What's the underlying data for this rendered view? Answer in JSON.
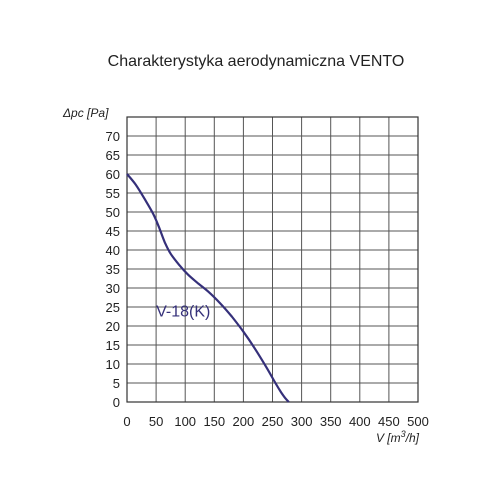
{
  "chart_data": {
    "type": "line",
    "title": "Charakterystyka aerodynamiczna  VENTO",
    "ylabel": "Δpc [Pa]",
    "xlabel_main": "V [m",
    "xlabel_sup": "3",
    "xlabel_end": "/h]",
    "xlim": [
      0,
      500
    ],
    "ylim": [
      0,
      75
    ],
    "x_ticks": [
      0,
      50,
      100,
      150,
      200,
      250,
      300,
      350,
      400,
      450,
      500
    ],
    "y_ticks": [
      0,
      5,
      10,
      15,
      20,
      25,
      30,
      35,
      40,
      45,
      50,
      55,
      60,
      65,
      70
    ],
    "x_grid_step": 50,
    "y_grid_step": 5,
    "grid": true,
    "legend": "none",
    "series": [
      {
        "name": "V-18(K)",
        "color": "#35307a",
        "x": [
          0,
          15,
          30,
          45,
          55,
          65,
          75,
          90,
          105,
          120,
          140,
          160,
          180,
          200,
          220,
          240,
          255,
          265,
          272,
          278
        ],
        "y": [
          60,
          57.2,
          53.5,
          49.5,
          46,
          42,
          39,
          36,
          33.5,
          31.5,
          29,
          26,
          22.5,
          18.5,
          14,
          9,
          5,
          2.5,
          1,
          0
        ]
      }
    ]
  }
}
